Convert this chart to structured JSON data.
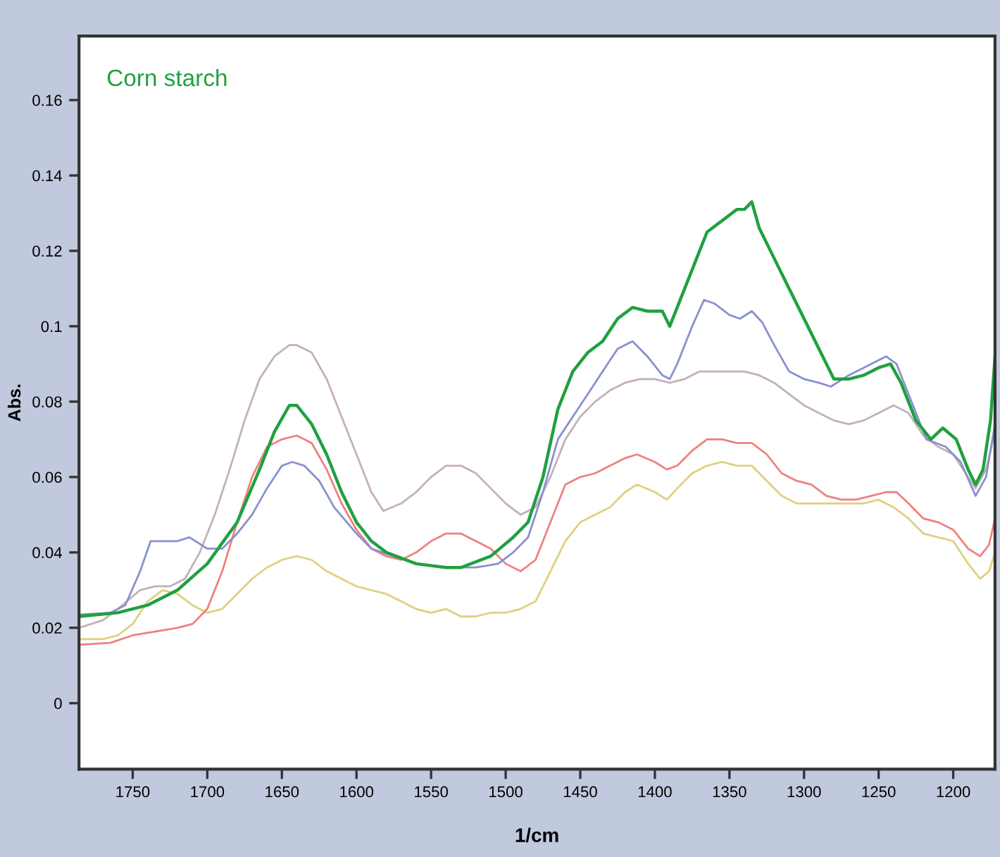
{
  "chart_data": {
    "type": "line",
    "title": "Corn starch",
    "xlabel": "1/cm",
    "ylabel": "Abs.",
    "xlim": [
      1786,
      1172
    ],
    "ylim": [
      -0.0175,
      0.177
    ],
    "xticks": [
      1750,
      1700,
      1650,
      1600,
      1550,
      1500,
      1450,
      1400,
      1350,
      1300,
      1250,
      1200
    ],
    "yticks": [
      0,
      0.02,
      0.04,
      0.06,
      0.08,
      0.1,
      0.12,
      0.14,
      0.16
    ],
    "grid": false,
    "legend": false,
    "marker": "none",
    "line_style": "solid",
    "series": [
      {
        "color": "#c4b0b8",
        "x": [
          1786,
          1770,
          1760,
          1745,
          1735,
          1725,
          1715,
          1705,
          1695,
          1685,
          1675,
          1665,
          1655,
          1645,
          1640,
          1630,
          1620,
          1610,
          1600,
          1590,
          1582,
          1570,
          1560,
          1550,
          1540,
          1530,
          1520,
          1510,
          1500,
          1490,
          1480,
          1470,
          1460,
          1450,
          1440,
          1430,
          1420,
          1410,
          1400,
          1390,
          1380,
          1370,
          1360,
          1350,
          1340,
          1330,
          1320,
          1310,
          1300,
          1290,
          1280,
          1270,
          1260,
          1250,
          1240,
          1230,
          1220,
          1210,
          1200,
          1190,
          1185,
          1178,
          1172
        ],
        "values": [
          0.02,
          0.022,
          0.025,
          0.03,
          0.031,
          0.031,
          0.033,
          0.04,
          0.05,
          0.062,
          0.075,
          0.086,
          0.092,
          0.095,
          0.095,
          0.093,
          0.086,
          0.076,
          0.066,
          0.056,
          0.051,
          0.053,
          0.056,
          0.06,
          0.063,
          0.063,
          0.061,
          0.057,
          0.053,
          0.05,
          0.052,
          0.06,
          0.07,
          0.076,
          0.08,
          0.083,
          0.085,
          0.086,
          0.086,
          0.085,
          0.086,
          0.088,
          0.088,
          0.088,
          0.088,
          0.087,
          0.085,
          0.082,
          0.079,
          0.077,
          0.075,
          0.074,
          0.075,
          0.077,
          0.079,
          0.077,
          0.071,
          0.068,
          0.066,
          0.06,
          0.057,
          0.062,
          0.072
        ]
      },
      {
        "color": "#e0d080",
        "x": [
          1786,
          1770,
          1760,
          1750,
          1740,
          1730,
          1720,
          1710,
          1700,
          1690,
          1680,
          1670,
          1660,
          1650,
          1640,
          1630,
          1620,
          1610,
          1600,
          1590,
          1580,
          1570,
          1560,
          1550,
          1540,
          1530,
          1520,
          1510,
          1500,
          1490,
          1480,
          1470,
          1460,
          1450,
          1440,
          1430,
          1420,
          1412,
          1400,
          1392,
          1385,
          1375,
          1365,
          1355,
          1345,
          1335,
          1325,
          1315,
          1305,
          1295,
          1285,
          1270,
          1260,
          1250,
          1240,
          1230,
          1220,
          1210,
          1200,
          1190,
          1182,
          1176,
          1172
        ],
        "values": [
          0.017,
          0.017,
          0.018,
          0.021,
          0.027,
          0.03,
          0.029,
          0.026,
          0.024,
          0.025,
          0.029,
          0.033,
          0.036,
          0.038,
          0.039,
          0.038,
          0.035,
          0.033,
          0.031,
          0.03,
          0.029,
          0.027,
          0.025,
          0.024,
          0.025,
          0.023,
          0.023,
          0.024,
          0.024,
          0.025,
          0.027,
          0.035,
          0.043,
          0.048,
          0.05,
          0.052,
          0.056,
          0.058,
          0.056,
          0.054,
          0.057,
          0.061,
          0.063,
          0.064,
          0.063,
          0.063,
          0.059,
          0.055,
          0.053,
          0.053,
          0.053,
          0.053,
          0.053,
          0.054,
          0.052,
          0.049,
          0.045,
          0.044,
          0.043,
          0.037,
          0.033,
          0.035,
          0.04
        ]
      },
      {
        "color": "#f08080",
        "x": [
          1786,
          1765,
          1750,
          1735,
          1720,
          1710,
          1700,
          1690,
          1680,
          1670,
          1660,
          1650,
          1640,
          1630,
          1620,
          1610,
          1600,
          1590,
          1580,
          1570,
          1560,
          1550,
          1540,
          1530,
          1520,
          1510,
          1500,
          1490,
          1480,
          1470,
          1460,
          1450,
          1440,
          1430,
          1420,
          1412,
          1400,
          1392,
          1385,
          1375,
          1365,
          1355,
          1345,
          1335,
          1325,
          1315,
          1305,
          1295,
          1285,
          1275,
          1265,
          1255,
          1245,
          1238,
          1230,
          1220,
          1210,
          1200,
          1190,
          1182,
          1176,
          1172
        ],
        "values": [
          0.0155,
          0.016,
          0.018,
          0.019,
          0.02,
          0.021,
          0.025,
          0.035,
          0.048,
          0.06,
          0.068,
          0.07,
          0.071,
          0.069,
          0.062,
          0.053,
          0.046,
          0.041,
          0.039,
          0.038,
          0.04,
          0.043,
          0.045,
          0.045,
          0.043,
          0.041,
          0.037,
          0.035,
          0.038,
          0.048,
          0.058,
          0.06,
          0.061,
          0.063,
          0.065,
          0.066,
          0.064,
          0.062,
          0.063,
          0.067,
          0.07,
          0.07,
          0.069,
          0.069,
          0.066,
          0.061,
          0.059,
          0.058,
          0.055,
          0.054,
          0.054,
          0.055,
          0.056,
          0.056,
          0.053,
          0.049,
          0.048,
          0.046,
          0.041,
          0.039,
          0.042,
          0.049
        ]
      },
      {
        "color": "#8890d0",
        "x": [
          1786,
          1765,
          1755,
          1745,
          1738,
          1730,
          1720,
          1712,
          1700,
          1690,
          1680,
          1670,
          1660,
          1650,
          1643,
          1635,
          1625,
          1615,
          1600,
          1590,
          1575,
          1560,
          1540,
          1520,
          1505,
          1495,
          1485,
          1475,
          1465,
          1455,
          1445,
          1435,
          1425,
          1415,
          1405,
          1395,
          1390,
          1385,
          1375,
          1367,
          1360,
          1350,
          1343,
          1335,
          1328,
          1320,
          1310,
          1300,
          1290,
          1282,
          1270,
          1255,
          1245,
          1238,
          1228,
          1218,
          1205,
          1195,
          1185,
          1178,
          1172
        ],
        "values": [
          0.0235,
          0.024,
          0.026,
          0.035,
          0.043,
          0.043,
          0.043,
          0.044,
          0.041,
          0.041,
          0.045,
          0.05,
          0.057,
          0.063,
          0.064,
          0.063,
          0.059,
          0.052,
          0.045,
          0.041,
          0.039,
          0.037,
          0.036,
          0.036,
          0.037,
          0.04,
          0.044,
          0.056,
          0.07,
          0.076,
          0.082,
          0.088,
          0.094,
          0.096,
          0.092,
          0.087,
          0.086,
          0.09,
          0.1,
          0.107,
          0.106,
          0.103,
          0.102,
          0.104,
          0.101,
          0.095,
          0.088,
          0.086,
          0.085,
          0.084,
          0.087,
          0.09,
          0.092,
          0.09,
          0.08,
          0.07,
          0.068,
          0.064,
          0.055,
          0.06,
          0.074
        ]
      },
      {
        "color": "#20a040",
        "x": [
          1786,
          1760,
          1740,
          1720,
          1700,
          1680,
          1665,
          1655,
          1645,
          1640,
          1630,
          1620,
          1610,
          1600,
          1590,
          1580,
          1560,
          1540,
          1530,
          1510,
          1495,
          1485,
          1475,
          1465,
          1455,
          1445,
          1435,
          1425,
          1415,
          1405,
          1395,
          1390,
          1385,
          1375,
          1365,
          1355,
          1345,
          1340,
          1335,
          1330,
          1320,
          1310,
          1300,
          1290,
          1280,
          1270,
          1260,
          1250,
          1242,
          1235,
          1225,
          1215,
          1207,
          1198,
          1190,
          1185,
          1180,
          1175,
          1172
        ],
        "values": [
          0.023,
          0.024,
          0.026,
          0.03,
          0.037,
          0.048,
          0.062,
          0.072,
          0.079,
          0.079,
          0.074,
          0.066,
          0.056,
          0.048,
          0.043,
          0.04,
          0.037,
          0.036,
          0.036,
          0.039,
          0.044,
          0.048,
          0.06,
          0.078,
          0.088,
          0.093,
          0.096,
          0.102,
          0.105,
          0.104,
          0.104,
          0.1,
          0.105,
          0.115,
          0.125,
          0.128,
          0.131,
          0.131,
          0.133,
          0.126,
          0.118,
          0.11,
          0.102,
          0.094,
          0.086,
          0.086,
          0.087,
          0.089,
          0.09,
          0.085,
          0.075,
          0.07,
          0.073,
          0.07,
          0.062,
          0.058,
          0.062,
          0.075,
          0.092
        ]
      }
    ]
  }
}
